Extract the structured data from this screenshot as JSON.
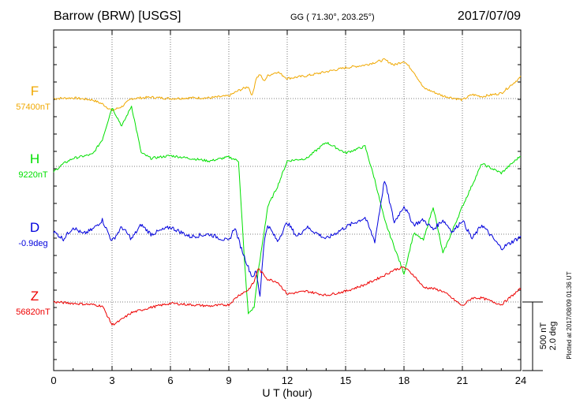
{
  "header": {
    "station": "Barrow (BRW)  [USGS]",
    "coords": "GG ( 71.30°, 203.25°)",
    "date": "2017/07/09"
  },
  "footer": {
    "plotted": "Plotted at 2017/08/09 01:36 UT"
  },
  "chart_data": {
    "type": "line",
    "title": "",
    "xlabel": "U T (hour)",
    "ylabel": "",
    "xlim": [
      0,
      24
    ],
    "x_ticks": [
      "0",
      "3",
      "6",
      "9",
      "12",
      "15",
      "18",
      "21",
      "24"
    ],
    "grid": true,
    "scale_bar": {
      "line1": "500 nT",
      "line2": "2.0 deg"
    },
    "colors": {
      "F": "#f0a800",
      "H": "#00e000",
      "D": "#0000dd",
      "Z": "#ee0000"
    },
    "series": [
      {
        "name": "F",
        "baseline": "57400nT",
        "x": [
          0,
          1,
          2,
          2.5,
          3,
          3.5,
          4,
          5,
          6,
          7,
          8,
          9,
          9.5,
          10,
          10.2,
          10.4,
          10.6,
          10.8,
          11,
          11.5,
          12,
          13,
          14,
          15,
          16,
          17,
          17.5,
          18,
          18.5,
          19,
          20,
          21,
          21.5,
          22,
          23,
          24
        ],
        "y": [
          0,
          5,
          -10,
          -40,
          -90,
          -60,
          0,
          10,
          0,
          5,
          5,
          20,
          60,
          90,
          20,
          150,
          180,
          130,
          170,
          200,
          150,
          170,
          200,
          230,
          250,
          290,
          250,
          280,
          200,
          80,
          20,
          -10,
          30,
          15,
          40,
          160
        ]
      },
      {
        "name": "H",
        "baseline": "9220nT",
        "x": [
          0,
          0.5,
          1,
          2,
          2.5,
          3,
          3.5,
          4,
          4.5,
          5,
          6,
          7,
          8,
          9,
          9.5,
          9.8,
          10,
          10.3,
          10.5,
          11,
          11.5,
          12,
          13,
          14,
          15,
          16,
          16.5,
          17,
          17.5,
          18,
          18.5,
          19,
          19.5,
          20,
          21,
          22,
          23,
          24
        ],
        "y": [
          -40,
          20,
          60,
          90,
          200,
          440,
          300,
          450,
          100,
          60,
          80,
          60,
          40,
          70,
          40,
          -700,
          -1100,
          -1050,
          -800,
          -300,
          -150,
          40,
          60,
          180,
          100,
          150,
          -100,
          -400,
          -600,
          -800,
          -500,
          -550,
          -300,
          -650,
          -300,
          20,
          -50,
          80
        ]
      },
      {
        "name": "D",
        "baseline": "-0.9deg",
        "x": [
          0,
          0.5,
          1,
          1.5,
          2,
          2.5,
          3,
          3.5,
          4,
          4.5,
          5,
          6,
          7,
          8,
          9,
          9.3,
          9.6,
          10,
          10.2,
          10.4,
          10.6,
          10.8,
          11,
          11.5,
          12,
          12.5,
          13,
          14,
          15,
          16,
          16.5,
          17,
          17.5,
          18,
          18.5,
          19,
          19.5,
          20,
          20.5,
          21,
          21.5,
          22,
          23,
          24
        ],
        "y": [
          0.1,
          -0.2,
          0.3,
          0,
          0.2,
          0.6,
          -0.3,
          0.3,
          -0.2,
          0.4,
          0,
          0.3,
          -0.1,
          0,
          -0.3,
          0.3,
          -0.5,
          -1.4,
          -1.8,
          -1.6,
          -2.6,
          -0.4,
          0.4,
          -0.3,
          0.5,
          -0.1,
          0.3,
          -0.2,
          0.3,
          0.7,
          -0.3,
          2.3,
          0.5,
          1.2,
          0.4,
          0.6,
          0.2,
          0.6,
          0.1,
          0.6,
          -0.2,
          0.4,
          -0.6,
          -0.1
        ]
      },
      {
        "name": "Z",
        "baseline": "56820nT",
        "x": [
          0,
          1,
          2,
          2.5,
          3,
          3.3,
          4,
          5,
          6,
          7,
          8,
          9,
          9.5,
          10,
          10.3,
          10.5,
          11,
          11.5,
          12,
          13,
          14,
          15,
          16,
          17,
          17.5,
          18,
          18.5,
          19,
          19.5,
          20,
          21,
          21.5,
          22,
          23,
          24
        ],
        "y": [
          0,
          -10,
          -20,
          -30,
          -170,
          -150,
          -80,
          -40,
          -10,
          -20,
          -30,
          -20,
          50,
          90,
          150,
          250,
          170,
          150,
          60,
          80,
          50,
          80,
          130,
          200,
          240,
          260,
          200,
          110,
          100,
          80,
          -30,
          30,
          30,
          -20,
          100
        ]
      }
    ]
  }
}
